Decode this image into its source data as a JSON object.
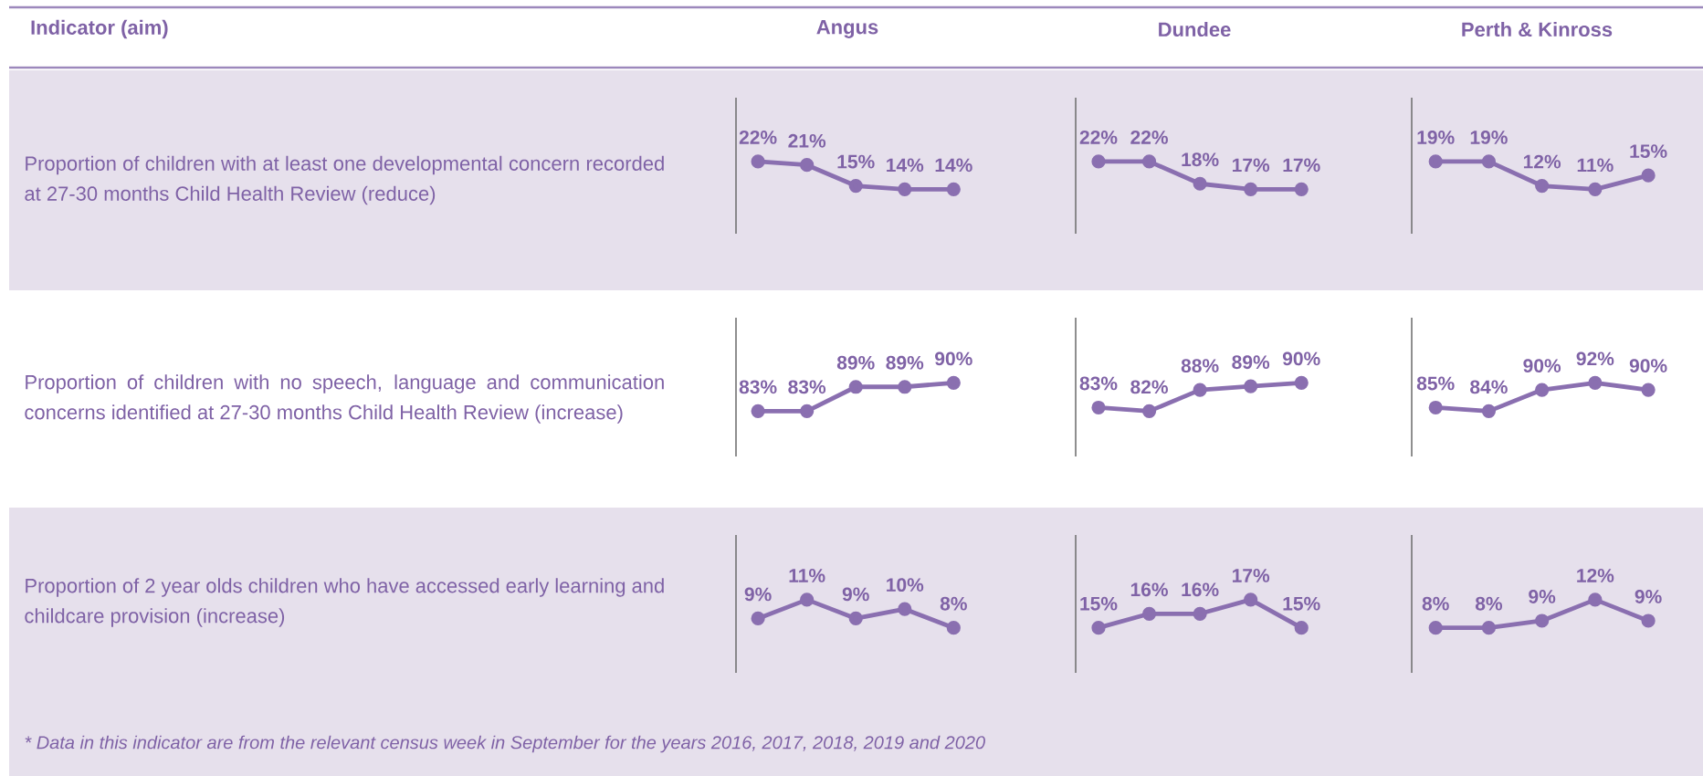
{
  "chart_data": [
    {
      "type": "other",
      "annotations": [
        "Indicator (aim)",
        "Angus",
        "Dundee",
        "Perth & Kinross"
      ]
    },
    {
      "type": "other",
      "annotations": [
        "Proportion of children with at least one developmental concern recorded at 27-30 months Child Health Review (reduce)"
      ]
    },
    {
      "type": "line",
      "categories": [
        null,
        null,
        null,
        null,
        null
      ],
      "values": [
        22,
        21,
        15,
        14,
        14
      ],
      "value_labels": [
        "22%",
        "21%",
        "15%",
        "14%",
        "14%"
      ],
      "color": "#8a6fb0",
      "marker": "circle"
    },
    {
      "type": "line",
      "categories": [
        null,
        null,
        null,
        null,
        null
      ],
      "values": [
        22,
        22,
        18,
        17,
        17
      ],
      "value_labels": [
        "22%",
        "22%",
        "18%",
        "17%",
        "17%"
      ],
      "color": "#8a6fb0",
      "marker": "circle"
    },
    {
      "type": "line",
      "categories": [
        null,
        null,
        null,
        null,
        null
      ],
      "values": [
        19,
        19,
        12,
        11,
        15
      ],
      "value_labels": [
        "19%",
        "19%",
        "12%",
        "11%",
        "15%"
      ],
      "color": "#8a6fb0",
      "marker": "circle"
    },
    {
      "type": "other",
      "annotations": [
        "Proportion of children with no speech, language and communication concerns identified at 27-30 months Child Health Review (increase)"
      ]
    },
    {
      "type": "line",
      "categories": [
        null,
        null,
        null,
        null,
        null
      ],
      "values": [
        83,
        83,
        89,
        89,
        90
      ],
      "value_labels": [
        "83%",
        "83%",
        "89%",
        "89%",
        "90%"
      ],
      "color": "#8a6fb0",
      "marker": "circle"
    },
    {
      "type": "line",
      "categories": [
        null,
        null,
        null,
        null,
        null
      ],
      "values": [
        83,
        82,
        88,
        89,
        90
      ],
      "value_labels": [
        "83%",
        "82%",
        "88%",
        "89%",
        "90%"
      ],
      "color": "#8a6fb0",
      "marker": "circle"
    },
    {
      "type": "line",
      "categories": [
        null,
        null,
        null,
        null,
        null
      ],
      "values": [
        85,
        84,
        90,
        92,
        90
      ],
      "value_labels": [
        "85%",
        "84%",
        "90%",
        "92%",
        "90%"
      ],
      "color": "#8a6fb0",
      "marker": "circle"
    },
    {
      "type": "other",
      "annotations": [
        "Proportion of 2 year olds children who have accessed early learning and childcare provision (increase)",
        "* Data in this indicator are from the relevant census week in September for the years 2016, 2017, 2018, 2019 and 2020"
      ]
    },
    {
      "type": "line",
      "categories": [
        null,
        null,
        null,
        null,
        null
      ],
      "values": [
        9,
        11,
        9,
        10,
        8
      ],
      "value_labels": [
        "9%",
        "11%",
        "9%",
        "10%",
        "8%"
      ],
      "color": "#8a6fb0",
      "marker": "circle"
    },
    {
      "type": "line",
      "categories": [
        null,
        null,
        null,
        null,
        null
      ],
      "values": [
        15,
        16,
        16,
        17,
        15
      ],
      "value_labels": [
        "15%",
        "16%",
        "16%",
        "17%",
        "15%"
      ],
      "color": "#8a6fb0",
      "marker": "circle"
    },
    {
      "type": "line",
      "categories": [
        null,
        null,
        null,
        null,
        null
      ],
      "values": [
        8,
        8,
        9,
        12,
        9
      ],
      "value_labels": [
        "8%",
        "8%",
        "9%",
        "12%",
        "9%"
      ],
      "color": "#8a6fb0",
      "marker": "circle"
    }
  ]
}
